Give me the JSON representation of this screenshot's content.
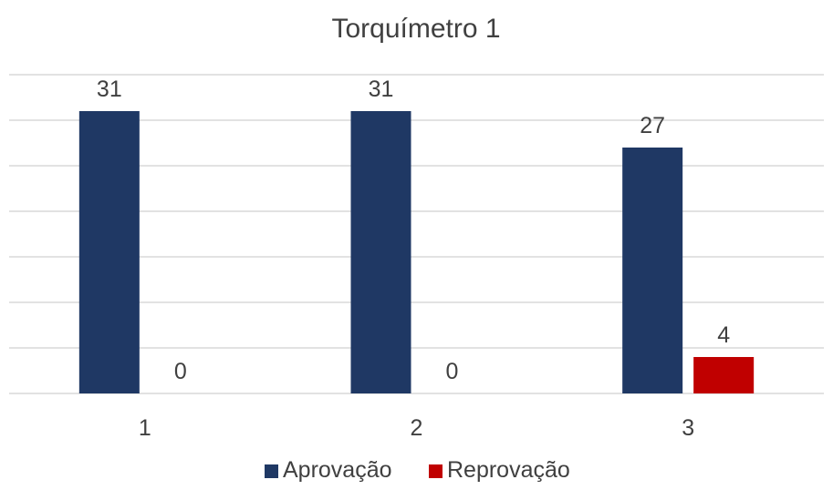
{
  "chart_data": {
    "type": "bar",
    "title": "Torquímetro 1",
    "xlabel": "",
    "ylabel": "",
    "categories": [
      "1",
      "2",
      "3"
    ],
    "series": [
      {
        "name": "Aprovação",
        "values": [
          31,
          31,
          27
        ],
        "color": "#1f3864"
      },
      {
        "name": "Reprovação",
        "values": [
          0,
          0,
          4
        ],
        "color": "#c00000"
      }
    ],
    "ylim": [
      0,
      35
    ],
    "grid": true,
    "y_tick_step": 5,
    "y_tick_labels_visible": false,
    "legend": "bottom",
    "data_labels": true
  }
}
